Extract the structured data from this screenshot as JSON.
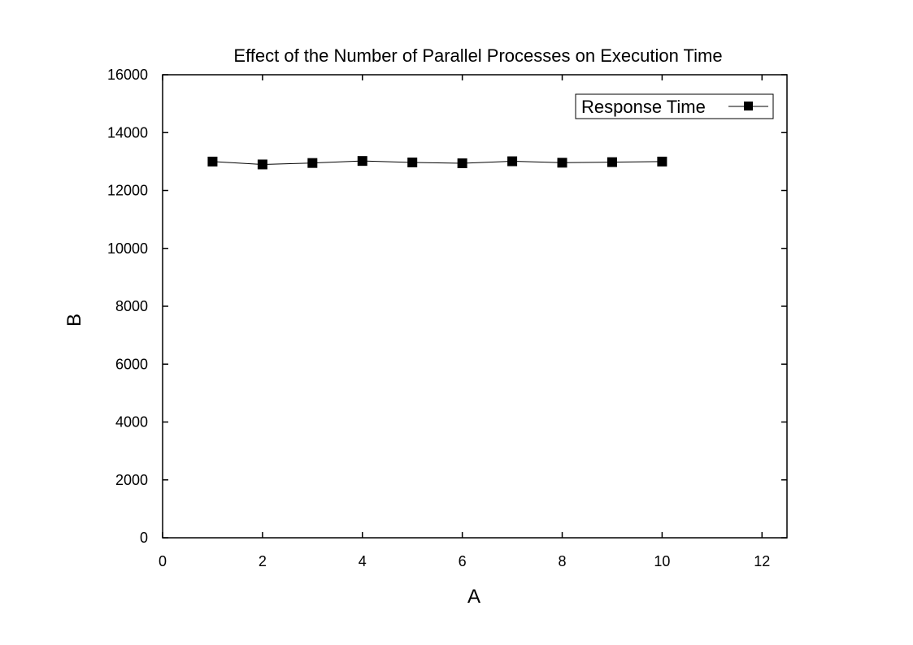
{
  "chart_data": {
    "type": "line",
    "title": "Effect of the Number of Parallel Processes on Execution Time",
    "xlabel": "A",
    "ylabel": "B",
    "xlim": [
      0,
      12.5
    ],
    "ylim": [
      0,
      16000
    ],
    "x_ticks": [
      0,
      2,
      4,
      6,
      8,
      10,
      12
    ],
    "y_ticks": [
      0,
      2000,
      4000,
      6000,
      8000,
      10000,
      12000,
      14000,
      16000
    ],
    "grid": false,
    "legend_position": "top-right",
    "series": [
      {
        "name": "Response Time",
        "marker": "square",
        "color": "#000000",
        "x": [
          1,
          2,
          3,
          4,
          5,
          6,
          7,
          8,
          9,
          10
        ],
        "y": [
          13000,
          12900,
          12950,
          13020,
          12970,
          12940,
          13010,
          12960,
          12980,
          13000
        ]
      }
    ]
  }
}
